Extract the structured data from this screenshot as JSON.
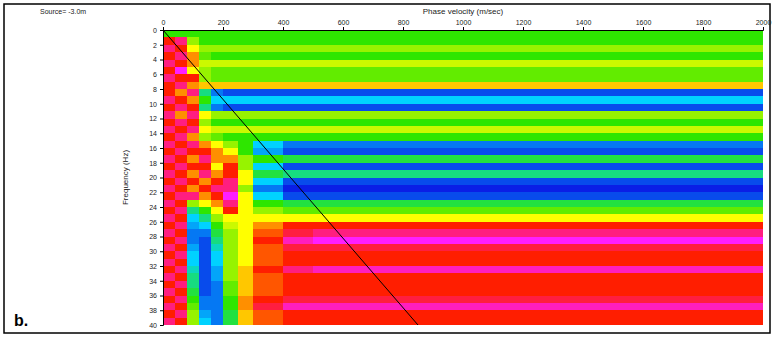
{
  "chart_data": {
    "type": "heatmap",
    "x_label": "Phase velocity (m/sec)",
    "y_label": "Frequency (Hz)",
    "annotations": [
      "Source= -3.0m",
      "b."
    ],
    "xlim": [
      0,
      2000
    ],
    "xticks": [
      0,
      200,
      400,
      600,
      800,
      1000,
      1200,
      1400,
      1600,
      1800,
      2000
    ],
    "ylim": [
      0,
      40
    ],
    "yticks": [
      0,
      2,
      4,
      6,
      8,
      10,
      12,
      14,
      16,
      18,
      20,
      22,
      24,
      26,
      28,
      30,
      32,
      34,
      36,
      38,
      40
    ],
    "cells": {
      "x_edges": [
        0,
        40,
        80,
        120,
        160,
        200,
        250,
        300,
        400,
        500,
        700,
        2000
      ],
      "y_edges": [
        0,
        1,
        2,
        3,
        4,
        5,
        6,
        7,
        8,
        9,
        10,
        11,
        12,
        13,
        14,
        15,
        16,
        17,
        18,
        19,
        20,
        21,
        22,
        23,
        24,
        25,
        26,
        27,
        28,
        29,
        30,
        31,
        32,
        33,
        34,
        35,
        36,
        37,
        38,
        39,
        40
      ],
      "zlim": [
        0,
        1
      ],
      "z": [
        [
          0.4,
          0.4,
          0.4,
          0.4,
          0.4,
          0.4,
          0.4,
          0.4,
          0.4,
          0.4,
          0.4
        ],
        [
          0.8,
          0.9,
          0.5,
          0.4,
          0.4,
          0.4,
          0.4,
          0.4,
          0.4,
          0.4,
          0.4
        ],
        [
          0.9,
          0.8,
          0.6,
          0.5,
          0.5,
          0.5,
          0.5,
          0.5,
          0.5,
          0.5,
          0.5
        ],
        [
          0.8,
          0.9,
          0.7,
          0.45,
          0.4,
          0.4,
          0.4,
          0.4,
          0.4,
          0.4,
          0.4
        ],
        [
          0.9,
          0.8,
          0.7,
          0.55,
          0.55,
          0.55,
          0.55,
          0.55,
          0.55,
          0.55,
          0.55
        ],
        [
          0.8,
          1.0,
          0.6,
          0.5,
          0.45,
          0.45,
          0.45,
          0.45,
          0.45,
          0.45,
          0.45
        ],
        [
          0.9,
          0.8,
          0.8,
          0.5,
          0.45,
          0.45,
          0.45,
          0.45,
          0.45,
          0.45,
          0.45
        ],
        [
          0.8,
          0.9,
          0.7,
          0.65,
          0.65,
          0.65,
          0.65,
          0.65,
          0.65,
          0.65,
          0.65
        ],
        [
          0.8,
          0.7,
          0.9,
          0.3,
          0.1,
          0.05,
          0.05,
          0.05,
          0.05,
          0.05,
          0.05
        ],
        [
          0.9,
          0.8,
          0.7,
          0.4,
          0.2,
          0.2,
          0.2,
          0.2,
          0.2,
          0.2,
          0.2
        ],
        [
          0.8,
          0.9,
          0.8,
          0.3,
          0.1,
          0.05,
          0.05,
          0.05,
          0.05,
          0.05,
          0.05
        ],
        [
          0.9,
          0.7,
          0.9,
          0.6,
          0.5,
          0.5,
          0.5,
          0.5,
          0.5,
          0.5,
          0.5
        ],
        [
          0.8,
          0.9,
          0.8,
          0.5,
          0.4,
          0.4,
          0.4,
          0.4,
          0.4,
          0.4,
          0.4
        ],
        [
          0.9,
          0.8,
          0.9,
          0.6,
          0.55,
          0.55,
          0.55,
          0.55,
          0.55,
          0.55,
          0.55
        ],
        [
          0.8,
          0.9,
          0.7,
          0.5,
          0.45,
          0.4,
          0.4,
          0.4,
          0.4,
          0.4,
          0.4
        ],
        [
          0.9,
          0.8,
          0.9,
          0.7,
          0.6,
          0.5,
          0.4,
          0.2,
          0.1,
          0.1,
          0.1
        ],
        [
          0.8,
          0.9,
          0.8,
          0.8,
          0.7,
          0.6,
          0.4,
          0.15,
          0.05,
          0.05,
          0.05
        ],
        [
          0.9,
          0.8,
          0.7,
          0.9,
          0.7,
          0.7,
          0.5,
          0.4,
          0.35,
          0.35,
          0.35
        ],
        [
          0.8,
          0.9,
          0.8,
          0.8,
          0.6,
          0.8,
          0.5,
          0.2,
          0.05,
          0.05,
          0.05
        ],
        [
          0.9,
          0.8,
          0.7,
          0.9,
          0.7,
          0.8,
          0.6,
          0.35,
          0.3,
          0.3,
          0.3
        ],
        [
          0.8,
          0.9,
          0.8,
          0.7,
          0.8,
          0.9,
          0.6,
          0.2,
          0.05,
          0.05,
          0.05
        ],
        [
          0.9,
          0.8,
          0.7,
          0.8,
          0.9,
          0.9,
          0.5,
          0.1,
          0.0,
          0.0,
          0.0
        ],
        [
          0.8,
          0.9,
          0.9,
          0.7,
          0.8,
          1.0,
          0.6,
          0.2,
          0.05,
          0.05,
          0.05
        ],
        [
          0.9,
          0.8,
          0.5,
          0.6,
          0.7,
          0.9,
          0.6,
          0.4,
          0.35,
          0.35,
          0.35
        ],
        [
          0.8,
          0.9,
          0.3,
          0.4,
          0.6,
          0.8,
          0.6,
          0.5,
          0.45,
          0.45,
          0.45
        ],
        [
          0.9,
          0.8,
          0.2,
          0.3,
          0.5,
          0.6,
          0.6,
          0.6,
          0.6,
          0.6,
          0.6
        ],
        [
          0.8,
          0.9,
          0.15,
          0.2,
          0.4,
          0.55,
          0.6,
          0.7,
          0.8,
          0.8,
          0.8
        ],
        [
          0.9,
          0.8,
          0.1,
          0.1,
          0.35,
          0.5,
          0.6,
          0.75,
          0.85,
          0.9,
          0.9
        ],
        [
          0.8,
          0.9,
          0.1,
          0.05,
          0.3,
          0.5,
          0.6,
          0.8,
          0.95,
          1.0,
          1.0
        ],
        [
          0.9,
          0.8,
          0.15,
          0.05,
          0.25,
          0.5,
          0.6,
          0.75,
          0.85,
          0.85,
          0.85
        ],
        [
          0.8,
          0.9,
          0.2,
          0.05,
          0.2,
          0.5,
          0.6,
          0.75,
          0.8,
          0.8,
          0.8
        ],
        [
          0.9,
          0.8,
          0.2,
          0.05,
          0.2,
          0.5,
          0.6,
          0.75,
          0.8,
          0.8,
          0.8
        ],
        [
          0.8,
          0.9,
          0.25,
          0.05,
          0.15,
          0.5,
          0.65,
          0.8,
          0.9,
          0.95,
          0.95
        ],
        [
          0.9,
          0.8,
          0.3,
          0.05,
          0.15,
          0.5,
          0.65,
          0.75,
          0.8,
          0.8,
          0.8
        ],
        [
          0.8,
          0.9,
          0.3,
          0.05,
          0.1,
          0.45,
          0.65,
          0.75,
          0.8,
          0.8,
          0.8
        ],
        [
          0.9,
          0.8,
          0.35,
          0.05,
          0.1,
          0.45,
          0.65,
          0.75,
          0.8,
          0.8,
          0.8
        ],
        [
          0.8,
          0.9,
          0.4,
          0.1,
          0.1,
          0.4,
          0.7,
          0.8,
          0.85,
          0.85,
          0.85
        ],
        [
          0.9,
          0.8,
          0.45,
          0.1,
          0.1,
          0.4,
          0.7,
          0.85,
          0.95,
          0.95,
          0.95
        ],
        [
          0.8,
          0.9,
          0.5,
          0.15,
          0.1,
          0.35,
          0.65,
          0.75,
          0.8,
          0.8,
          0.8
        ],
        [
          0.9,
          0.8,
          0.5,
          0.2,
          0.1,
          0.35,
          0.65,
          0.75,
          0.8,
          0.8,
          0.8
        ]
      ]
    },
    "line": {
      "x": [
        0,
        850
      ],
      "y": [
        0,
        40
      ],
      "color": "#000000"
    }
  }
}
